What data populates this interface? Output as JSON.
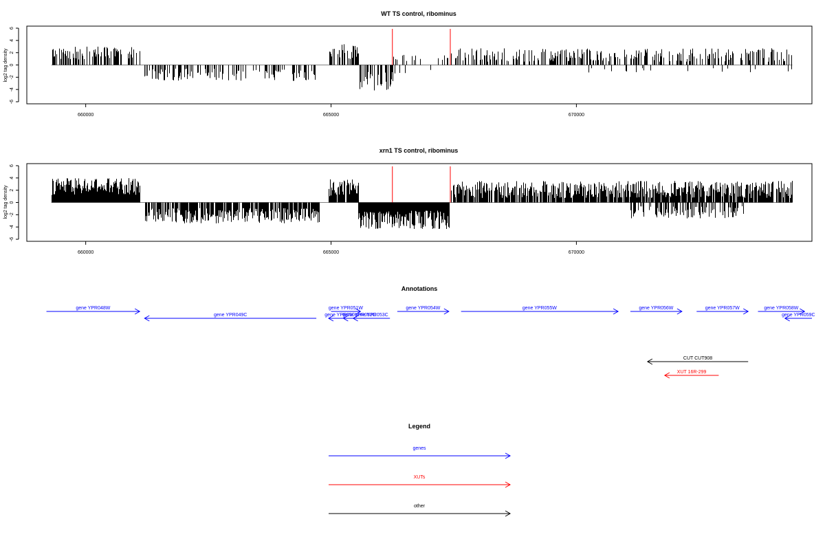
{
  "chart_data": [
    {
      "type": "bar",
      "title": "WT TS control, ribominus",
      "ylabel": "log2 tag density",
      "xlim": [
        658800,
        674800
      ],
      "ylim": [
        -6,
        6
      ],
      "yticks": [
        6,
        4,
        2,
        0,
        -2,
        -4,
        -6
      ],
      "xticks": [
        660000,
        665000,
        670000
      ],
      "markers": [
        666250,
        667430
      ],
      "marker_color": "#ff0000",
      "segments": [
        {
          "start": 659300,
          "end": 661100,
          "sign": 1,
          "mean": 1.6,
          "amp": 2.2,
          "density": 0.55
        },
        {
          "start": 661200,
          "end": 664750,
          "sign": -1,
          "mean": 1.3,
          "amp": 2.0,
          "density": 0.35
        },
        {
          "start": 664950,
          "end": 665550,
          "sign": 1,
          "mean": 1.8,
          "amp": 2.6,
          "density": 0.55
        },
        {
          "start": 665550,
          "end": 666250,
          "sign": -1,
          "mean": 2.2,
          "amp": 3.0,
          "density": 0.6
        },
        {
          "start": 666250,
          "end": 667400,
          "sign": 0,
          "mean": 1.0,
          "amp": 1.0,
          "density": 0.2
        },
        {
          "start": 667450,
          "end": 674400,
          "sign": 1,
          "mean": 1.3,
          "amp": 2.2,
          "density": 0.4
        },
        {
          "start": 670100,
          "end": 674400,
          "sign": -1,
          "mean": 0.6,
          "amp": 1.0,
          "density": 0.04
        }
      ]
    },
    {
      "type": "bar",
      "title": "xrn1 TS control, ribominus",
      "ylabel": "log2 tag density",
      "xlim": [
        658800,
        674800
      ],
      "ylim": [
        -6,
        6
      ],
      "yticks": [
        6,
        4,
        2,
        0,
        -2,
        -4,
        -6
      ],
      "xticks": [
        660000,
        665000,
        670000
      ],
      "markers": [
        666250,
        667430
      ],
      "marker_color": "#ff0000",
      "segments": [
        {
          "start": 659300,
          "end": 661100,
          "sign": 1,
          "mean": 2.2,
          "amp": 2.8,
          "density": 1.0
        },
        {
          "start": 661200,
          "end": 664750,
          "sign": -1,
          "mean": 1.8,
          "amp": 2.5,
          "density": 0.8
        },
        {
          "start": 664950,
          "end": 665550,
          "sign": 1,
          "mean": 2.0,
          "amp": 2.8,
          "density": 0.9
        },
        {
          "start": 665550,
          "end": 667400,
          "sign": -1,
          "mean": 2.4,
          "amp": 3.0,
          "density": 1.0
        },
        {
          "start": 667450,
          "end": 674400,
          "sign": 1,
          "mean": 1.7,
          "amp": 2.8,
          "density": 0.85
        },
        {
          "start": 671100,
          "end": 673400,
          "sign": -1,
          "mean": 1.3,
          "amp": 2.0,
          "density": 0.5
        }
      ]
    }
  ],
  "annotations": {
    "title": "Annotations",
    "features": [
      {
        "label": "gene YPR048W",
        "start": 659200,
        "end": 661100,
        "strand": "+",
        "row": 0,
        "color": "#0000ff"
      },
      {
        "label": "gene YPR049C",
        "start": 661200,
        "end": 664700,
        "strand": "-",
        "row": 1,
        "color": "#0000ff"
      },
      {
        "label": "gene YPR051W",
        "start": 665000,
        "end": 665600,
        "strand": "+",
        "row": 0,
        "color": "#0000ff"
      },
      {
        "label": "gene YPR050",
        "start": 664950,
        "end": 665400,
        "strand": "-",
        "row": 1,
        "color": "#0000ff"
      },
      {
        "label": "gene YPR052C",
        "start": 665250,
        "end": 665900,
        "strand": "-",
        "row": 1,
        "color": "#0000ff"
      },
      {
        "label": "gene YPR053C",
        "start": 665450,
        "end": 666200,
        "strand": "-",
        "row": 1,
        "color": "#0000ff"
      },
      {
        "label": "gene YPR054W",
        "start": 666350,
        "end": 667400,
        "strand": "+",
        "row": 0,
        "color": "#0000ff"
      },
      {
        "label": "gene YPR055W",
        "start": 667650,
        "end": 670850,
        "strand": "+",
        "row": 0,
        "color": "#0000ff"
      },
      {
        "label": "gene YPR056W",
        "start": 671100,
        "end": 672150,
        "strand": "+",
        "row": 0,
        "color": "#0000ff"
      },
      {
        "label": "gene YPR057W",
        "start": 672450,
        "end": 673500,
        "strand": "+",
        "row": 0,
        "color": "#0000ff"
      },
      {
        "label": "gene YPR058W",
        "start": 673700,
        "end": 674650,
        "strand": "+",
        "row": 0,
        "color": "#0000ff"
      },
      {
        "label": "gene YPR059C",
        "start": 674250,
        "end": 674800,
        "strand": "-",
        "row": 1,
        "color": "#0000ff"
      },
      {
        "label": "CUT CUT908",
        "start": 671450,
        "end": 673500,
        "strand": "-",
        "row": 3,
        "color": "#000000"
      },
      {
        "label": "XUT 16R-299",
        "start": 671800,
        "end": 672900,
        "strand": "-",
        "row": 4,
        "color": "#ff0000"
      }
    ]
  },
  "legend": {
    "title": "Legend",
    "items": [
      {
        "label": "genes",
        "color": "#0000ff"
      },
      {
        "label": "XUTs",
        "color": "#ff0000"
      },
      {
        "label": "other",
        "color": "#000000"
      }
    ]
  }
}
